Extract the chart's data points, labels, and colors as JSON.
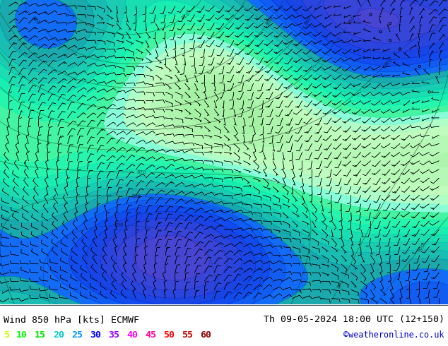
{
  "title_left": "Wind 850 hPa [kts] ECMWF",
  "title_right": "Th 09-05-2024 18:00 UTC (12+150)",
  "credit": "©weatheronline.co.uk",
  "legend_values": [
    "5",
    "10",
    "15",
    "20",
    "25",
    "30",
    "35",
    "40",
    "45",
    "50",
    "55",
    "60"
  ],
  "legend_colors": [
    "#c8ff00",
    "#00ff00",
    "#00e000",
    "#00c8c8",
    "#0096ff",
    "#0000ff",
    "#9600ff",
    "#ff00ff",
    "#ff0096",
    "#ff0000",
    "#c80000",
    "#960000"
  ],
  "bg_color": "#ffffff",
  "map_bg": "#90ee90",
  "font_color": "#000000",
  "fig_width": 6.34,
  "fig_height": 4.9,
  "dpi": 100
}
